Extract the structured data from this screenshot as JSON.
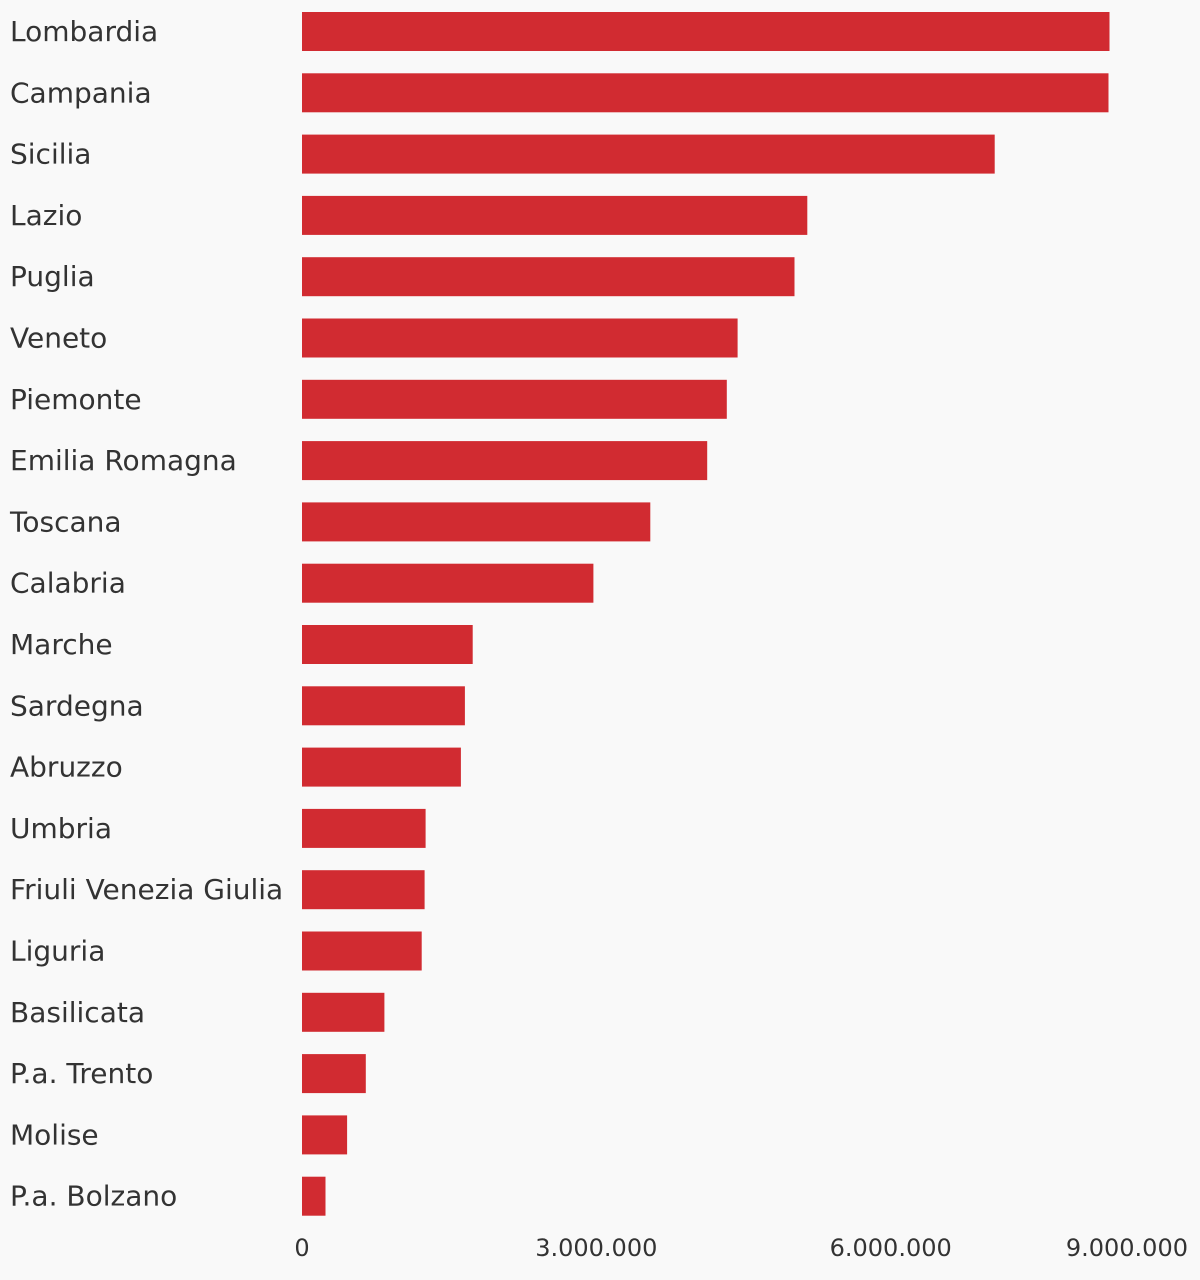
{
  "chart_data": {
    "type": "bar",
    "orientation": "horizontal",
    "categories": [
      "Lombardia",
      "Campania",
      "Sicilia",
      "Lazio",
      "Puglia",
      "Veneto",
      "Piemonte",
      "Emilia Romagna",
      "Toscana",
      "Calabria",
      "Marche",
      "Sardegna",
      "Abruzzo",
      "Umbria",
      "Friuli Venezia Giulia",
      "Liguria",
      "Basilicata",
      "P.a. Trento",
      "Molise",
      "P.a. Bolzano"
    ],
    "values": [
      8230000,
      8220000,
      7060000,
      5150000,
      5020000,
      4440000,
      4330000,
      4130000,
      3550000,
      2970000,
      1740000,
      1660000,
      1620000,
      1260000,
      1250000,
      1220000,
      840000,
      650000,
      460000,
      240000
    ],
    "xlim": [
      0,
      9000000
    ],
    "xticks": [
      0,
      3000000,
      6000000,
      9000000
    ],
    "xtick_labels": [
      "0",
      "3.000.000",
      "6.000.000",
      "9.000.000"
    ],
    "title": "",
    "xlabel": "",
    "ylabel": "",
    "grid": false,
    "legend": "none",
    "bar_color": "#d12b31",
    "text_color": "#333333",
    "background": "#f9f9f9"
  }
}
